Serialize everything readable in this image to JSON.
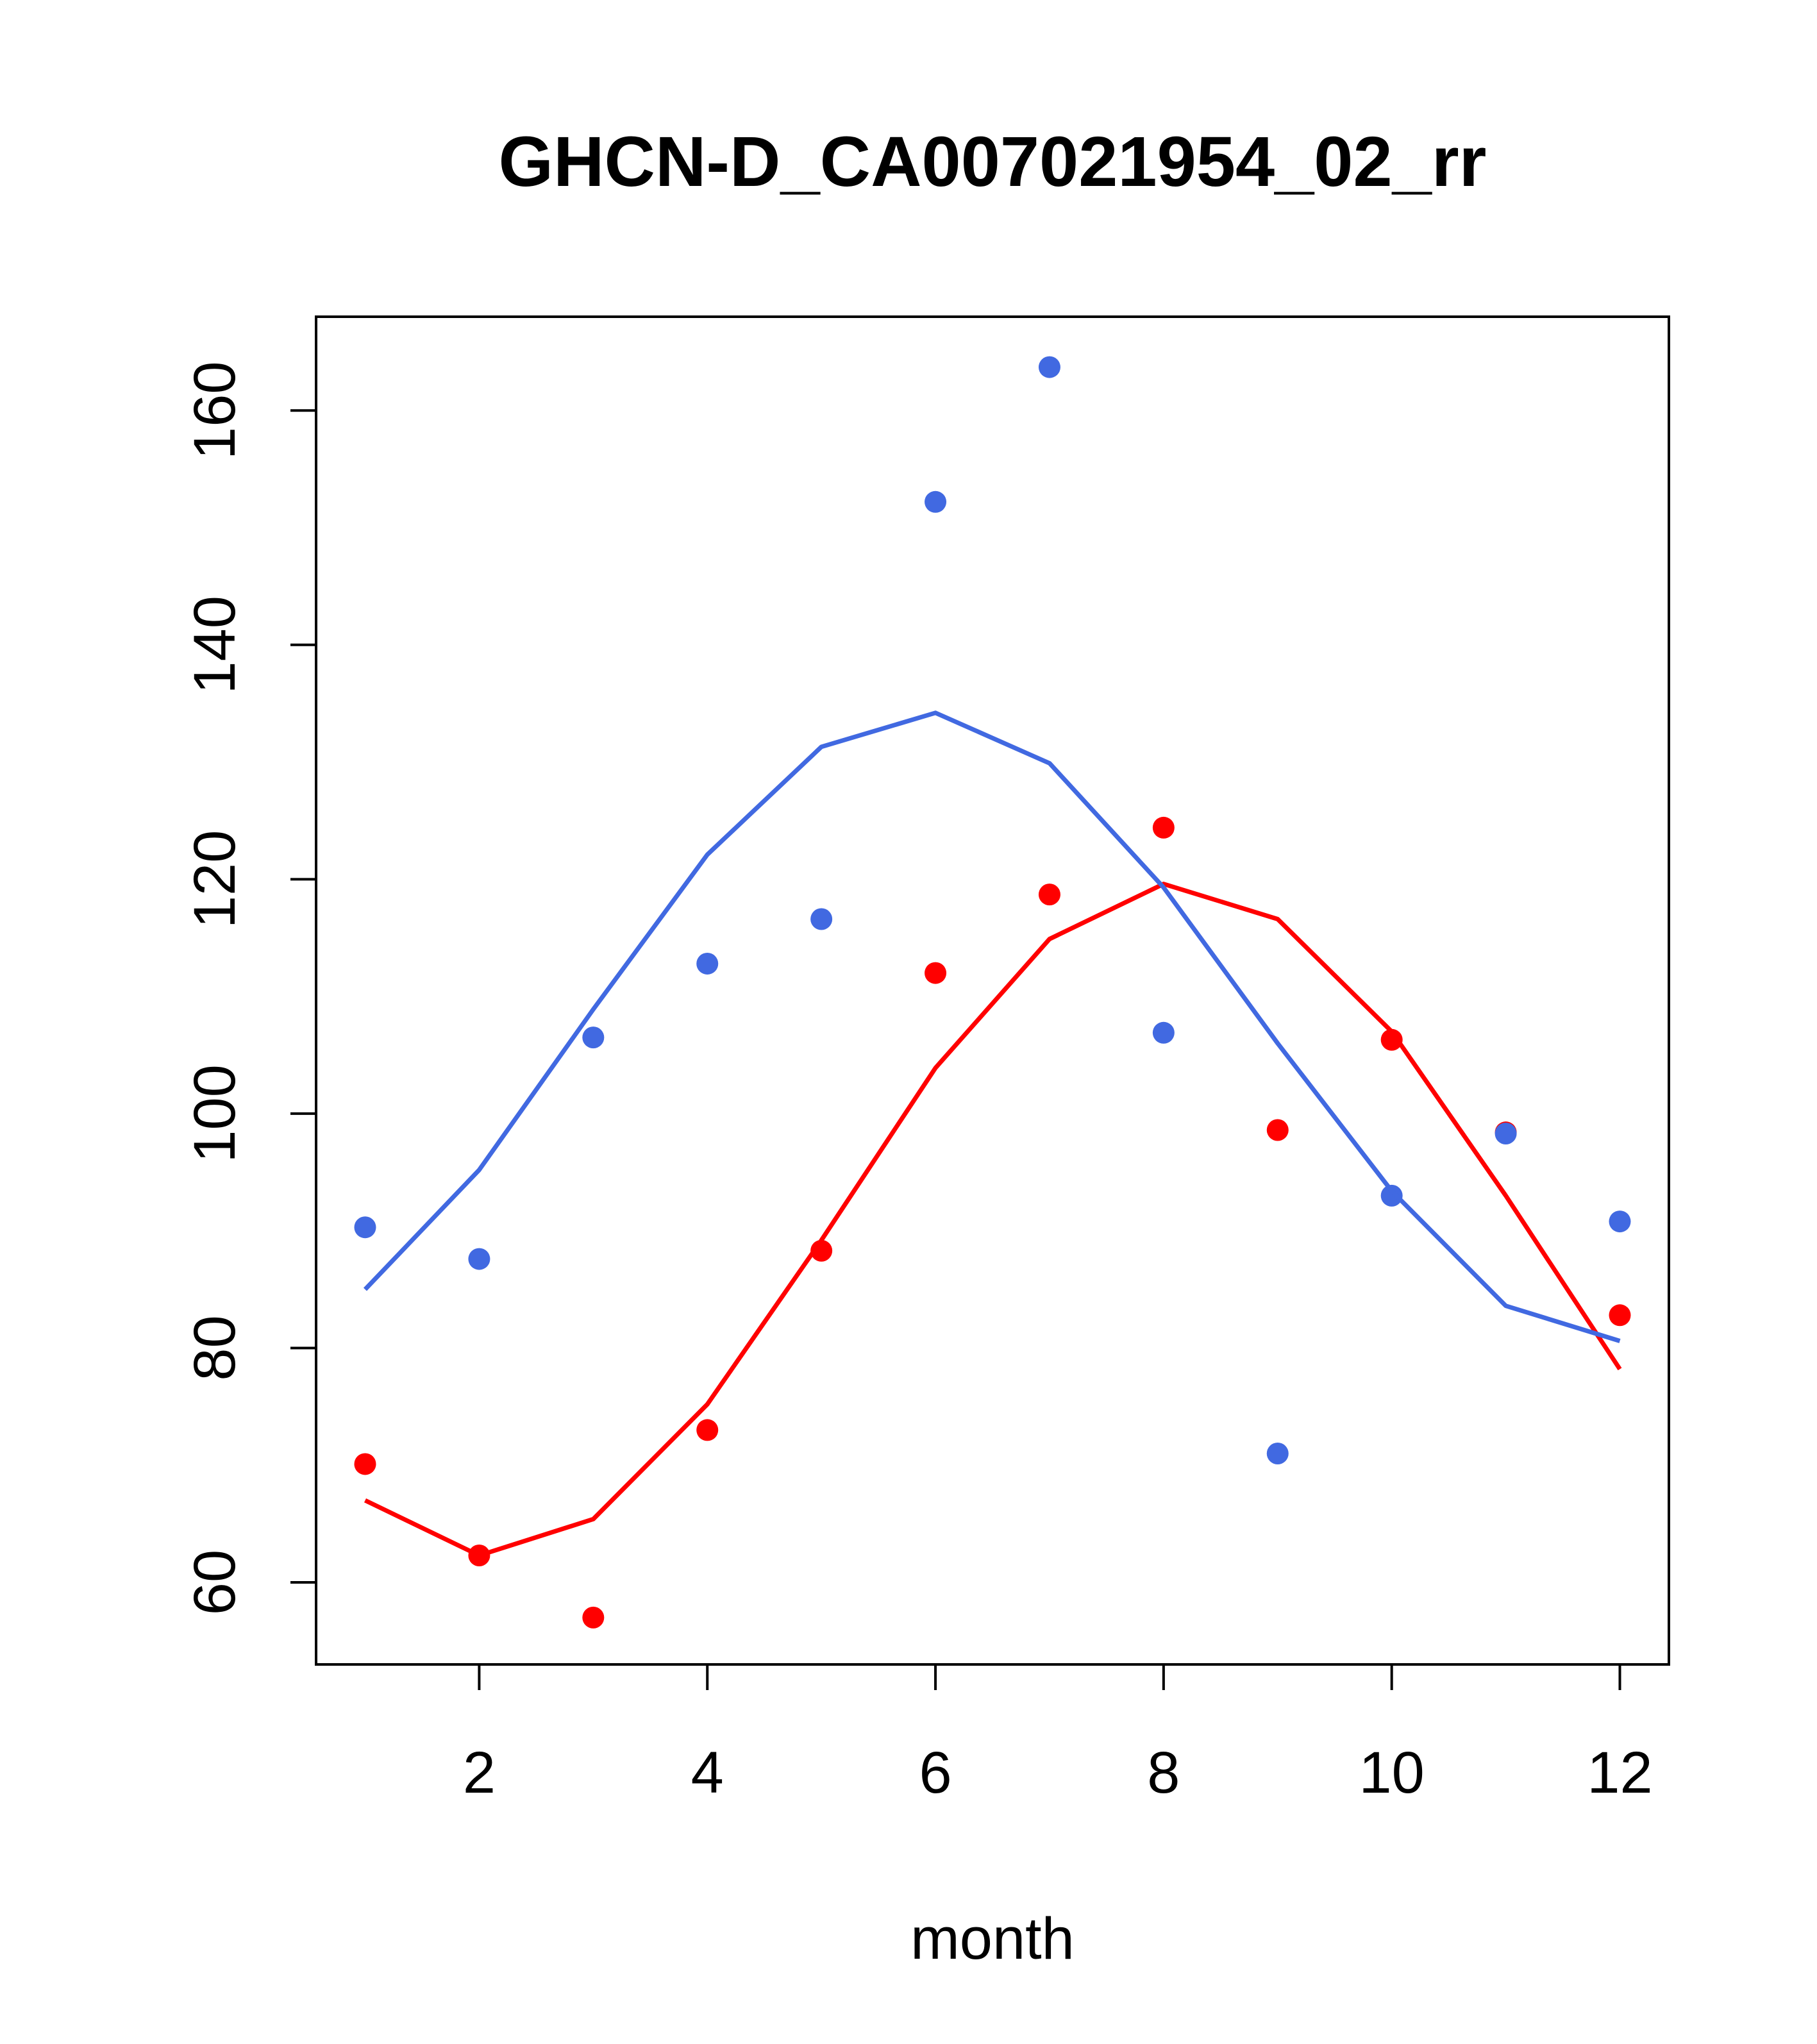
{
  "chart_data": {
    "type": "line",
    "title": "GHCN-D_CA007021954_02_rr",
    "xlabel": "month",
    "ylabel": "",
    "xlim": [
      0.57,
      12.43
    ],
    "ylim": [
      53,
      168
    ],
    "x_ticks": [
      2,
      4,
      6,
      8,
      10,
      12
    ],
    "y_ticks": [
      60,
      80,
      100,
      120,
      140,
      160
    ],
    "grid": false,
    "legend": "none",
    "x": [
      1,
      2,
      3,
      4,
      5,
      6,
      7,
      8,
      9,
      10,
      11,
      12
    ],
    "series": [
      {
        "name": "red points",
        "kind": "points",
        "color": "#ff0000",
        "values": [
          70.1,
          62.3,
          57.0,
          73.0,
          88.3,
          112.0,
          118.7,
          124.4,
          98.6,
          106.3,
          98.4,
          82.8
        ]
      },
      {
        "name": "red fit",
        "kind": "line",
        "color": "#ff0000",
        "values": [
          67.0,
          62.3,
          65.4,
          75.2,
          89.2,
          103.9,
          114.9,
          119.6,
          116.6,
          107.0,
          93.0,
          78.2
        ]
      },
      {
        "name": "blue points",
        "kind": "points",
        "color": "#4169e1",
        "values": [
          90.3,
          87.6,
          106.5,
          112.8,
          116.6,
          152.2,
          163.7,
          106.9,
          71.0,
          93.0,
          98.3,
          90.8
        ]
      },
      {
        "name": "blue fit",
        "kind": "line",
        "color": "#4169e1",
        "values": [
          85.0,
          95.2,
          108.9,
          122.1,
          131.3,
          134.2,
          129.9,
          119.3,
          106.0,
          93.4,
          83.6,
          80.6
        ]
      }
    ]
  }
}
